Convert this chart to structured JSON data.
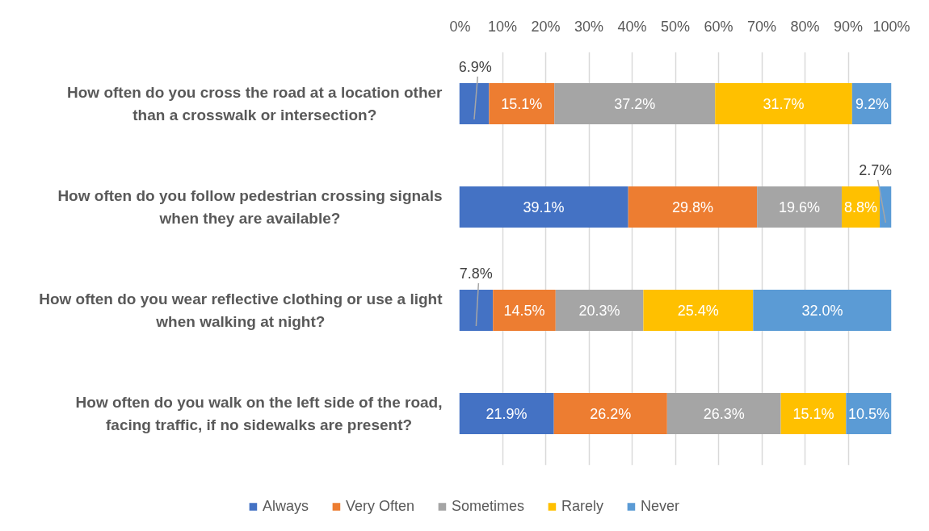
{
  "chart_data": {
    "type": "bar",
    "orientation": "horizontal",
    "stacked": true,
    "categories": [
      "How often do you cross the road at a location other than a crosswalk or intersection?",
      "How often do you follow pedestrian crossing signals when they are available?",
      "How often do you wear reflective clothing or use a light when walking at night?",
      "How often do you walk on the left side of the road, facing traffic, if no sidewalks are present?"
    ],
    "series": [
      {
        "name": "Always",
        "color": "#4472c4",
        "values": [
          6.9,
          39.1,
          7.8,
          21.9
        ],
        "value_labels": [
          "6.9%",
          "39.1%",
          "7.8%",
          "21.9%"
        ]
      },
      {
        "name": "Very Often",
        "color": "#ed7d31",
        "values": [
          15.1,
          29.8,
          14.5,
          26.2
        ],
        "value_labels": [
          "15.1%",
          "29.8%",
          "14.5%",
          "26.2%"
        ]
      },
      {
        "name": "Sometimes",
        "color": "#a5a5a5",
        "values": [
          37.2,
          19.6,
          20.3,
          26.3
        ],
        "value_labels": [
          "37.2%",
          "19.6%",
          "20.3%",
          "26.3%"
        ]
      },
      {
        "name": "Rarely",
        "color": "#ffc000",
        "values": [
          31.7,
          8.8,
          25.4,
          15.1
        ],
        "value_labels": [
          "31.7%",
          "8.8%",
          "25.4%",
          "15.1%"
        ]
      },
      {
        "name": "Never",
        "color": "#5b9bd5",
        "values": [
          9.2,
          2.7,
          32.0,
          10.5
        ],
        "value_labels": [
          "9.2%",
          "2.7%",
          "32.0%",
          "10.5%"
        ]
      }
    ],
    "xlim": [
      0,
      100
    ],
    "xticks": [
      {
        "value": 0,
        "label": "0%"
      },
      {
        "value": 10,
        "label": "10%"
      },
      {
        "value": 20,
        "label": "20%"
      },
      {
        "value": 30,
        "label": "30%"
      },
      {
        "value": 40,
        "label": "40%"
      },
      {
        "value": 50,
        "label": "50%"
      },
      {
        "value": 60,
        "label": "60%"
      },
      {
        "value": 70,
        "label": "70%"
      },
      {
        "value": 80,
        "label": "80%"
      },
      {
        "value": 90,
        "label": "90%"
      },
      {
        "value": 100,
        "label": "100%"
      }
    ],
    "grid": "x",
    "legend": "bottom"
  }
}
